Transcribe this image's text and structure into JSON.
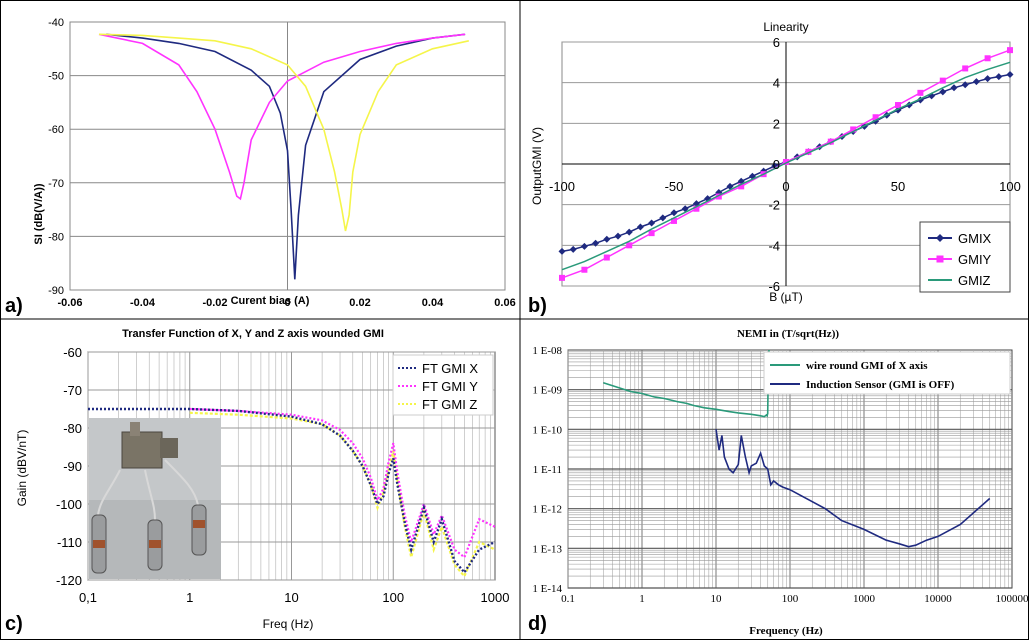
{
  "colors": {
    "navy": "#1f2a80",
    "magenta": "#ff33ff",
    "yellow": "#f5f54a",
    "teal": "#2a9a7a",
    "grid": "#aaaaaa",
    "photo_bg": "#c4c7c9"
  },
  "panels": {
    "a": {
      "label": "a)"
    },
    "b": {
      "label": "b)"
    },
    "c": {
      "label": "c)"
    },
    "d": {
      "label": "d)"
    }
  },
  "chart_data": [
    {
      "id": "a",
      "type": "line",
      "title": "",
      "xlabel": "Curent bias (A)",
      "ylabel": "SI (dB(V/A))",
      "xlim": [
        -0.06,
        0.06
      ],
      "ylim": [
        -90,
        -40
      ],
      "x_ticks": [
        "-0.06",
        "-0.04",
        "-0.02",
        "0",
        "0.02",
        "0.04",
        "0.06"
      ],
      "y_ticks": [
        "-40",
        "-50",
        "-60",
        "-70",
        "-80",
        "-90"
      ],
      "grid": "horizontal",
      "legend": "none",
      "series": [
        {
          "color": "navy",
          "x": [
            -0.05,
            -0.04,
            -0.03,
            -0.02,
            -0.01,
            -0.005,
            -0.002,
            0.0,
            0.001,
            0.002,
            0.003,
            0.005,
            0.01,
            0.02,
            0.03,
            0.04,
            0.049
          ],
          "y": [
            -42.3,
            -43,
            -44,
            -45.5,
            -49,
            -52,
            -57,
            -64,
            -75,
            -88,
            -76,
            -63,
            -53,
            -47,
            -44.5,
            -43,
            -42.3
          ]
        },
        {
          "color": "magenta",
          "x": [
            -0.052,
            -0.04,
            -0.03,
            -0.025,
            -0.02,
            -0.016,
            -0.014,
            -0.013,
            -0.012,
            -0.01,
            -0.005,
            0.0,
            0.01,
            0.02,
            0.03,
            0.04,
            0.049
          ],
          "y": [
            -42.3,
            -44,
            -48,
            -53,
            -60,
            -68,
            -72.5,
            -73,
            -70,
            -62,
            -55,
            -51,
            -47.5,
            -45.5,
            -44,
            -43,
            -42.3
          ]
        },
        {
          "color": "yellow",
          "x": [
            -0.052,
            -0.04,
            -0.03,
            -0.02,
            -0.01,
            0.0,
            0.005,
            0.01,
            0.013,
            0.015,
            0.016,
            0.017,
            0.018,
            0.02,
            0.025,
            0.03,
            0.04,
            0.05
          ],
          "y": [
            -42.3,
            -42.5,
            -43,
            -43.5,
            -45,
            -48,
            -52,
            -60,
            -68,
            -75,
            -79,
            -76,
            -68,
            -61,
            -53,
            -48,
            -45,
            -43.5
          ]
        }
      ]
    },
    {
      "id": "b",
      "type": "line",
      "title": "Linearity",
      "xlabel": "B (µT)",
      "ylabel": "OutputGMI (V)",
      "xlim": [
        -100,
        100
      ],
      "ylim": [
        -6,
        6
      ],
      "x_ticks": [
        "-100",
        "-50",
        "0",
        "50",
        "100"
      ],
      "y_ticks": [
        "6",
        "4",
        "2",
        "0",
        "-2",
        "-4",
        "-6"
      ],
      "grid": "horizontal",
      "legend": "bottom-right",
      "series": [
        {
          "name": "GMIX",
          "color": "navy",
          "marker": "diamond",
          "x": [
            -100,
            -95,
            -90,
            -85,
            -80,
            -75,
            -70,
            -65,
            -60,
            -55,
            -50,
            -45,
            -40,
            -35,
            -30,
            -25,
            -20,
            -15,
            -10,
            -5,
            0,
            5,
            10,
            15,
            20,
            25,
            30,
            35,
            40,
            45,
            50,
            55,
            60,
            65,
            70,
            75,
            80,
            85,
            90,
            95,
            100
          ],
          "y": [
            -4.3,
            -4.2,
            -4.05,
            -3.9,
            -3.7,
            -3.55,
            -3.35,
            -3.1,
            -2.9,
            -2.65,
            -2.4,
            -2.2,
            -1.95,
            -1.7,
            -1.4,
            -1.1,
            -0.85,
            -0.6,
            -0.35,
            -0.1,
            0.1,
            0.35,
            0.6,
            0.85,
            1.1,
            1.35,
            1.6,
            1.85,
            2.1,
            2.4,
            2.65,
            2.9,
            3.15,
            3.35,
            3.55,
            3.75,
            3.9,
            4.05,
            4.2,
            4.3,
            4.4
          ]
        },
        {
          "name": "GMIY",
          "color": "magenta",
          "marker": "square",
          "x": [
            -100,
            -90,
            -80,
            -70,
            -60,
            -50,
            -40,
            -30,
            -20,
            -10,
            0,
            10,
            20,
            30,
            40,
            50,
            60,
            70,
            80,
            90,
            100
          ],
          "y": [
            -5.6,
            -5.2,
            -4.6,
            -4.0,
            -3.4,
            -2.8,
            -2.2,
            -1.6,
            -1.1,
            -0.5,
            0.1,
            0.6,
            1.1,
            1.7,
            2.3,
            2.9,
            3.5,
            4.1,
            4.7,
            5.2,
            5.6
          ]
        },
        {
          "name": "GMIZ",
          "color": "teal",
          "marker": "none",
          "x": [
            -100,
            -90,
            -80,
            -70,
            -60,
            -50,
            -40,
            -30,
            -20,
            -10,
            0,
            10,
            20,
            30,
            40,
            50,
            60,
            70,
            80,
            90,
            100
          ],
          "y": [
            -5.2,
            -4.8,
            -4.3,
            -3.8,
            -3.2,
            -2.65,
            -2.1,
            -1.55,
            -1.0,
            -0.5,
            0.05,
            0.55,
            1.05,
            1.6,
            2.15,
            2.7,
            3.2,
            3.75,
            4.25,
            4.65,
            5.0
          ]
        }
      ]
    },
    {
      "id": "c",
      "type": "line",
      "title": "Transfer Function of X, Y and Z axis wounded GMI",
      "xlabel": "Freq (Hz)",
      "ylabel": "Gain (dBV/nT)",
      "xscale": "log",
      "xlim": [
        0.1,
        1000
      ],
      "ylim": [
        -120,
        -60
      ],
      "x_ticks": [
        "0,1",
        "1",
        "10",
        "100",
        "1000"
      ],
      "y_ticks": [
        "-60",
        "-70",
        "-80",
        "-90",
        "-100",
        "-110",
        "-120"
      ],
      "grid": "both",
      "legend": "top-right",
      "series": [
        {
          "name": "FT GMI X",
          "color": "navy",
          "style": "dotted",
          "x": [
            0.1,
            0.5,
            1,
            3,
            10,
            20,
            30,
            40,
            50,
            60,
            70,
            80,
            90,
            100,
            110,
            130,
            150,
            200,
            250,
            300,
            400,
            500,
            700,
            1000
          ],
          "y": [
            -75,
            -75,
            -75,
            -75.5,
            -77,
            -79,
            -82,
            -86,
            -90,
            -95,
            -100,
            -98,
            -92,
            -88,
            -95,
            -105,
            -112,
            -101,
            -110,
            -104,
            -115,
            -118,
            -112,
            -110
          ]
        },
        {
          "name": "FT GMI Y",
          "color": "magenta",
          "style": "dotted",
          "x": [
            1,
            3,
            10,
            20,
            30,
            40,
            50,
            60,
            70,
            80,
            90,
            100,
            110,
            130,
            150,
            200,
            250,
            300,
            400,
            500,
            700,
            1000
          ],
          "y": [
            -75,
            -75.5,
            -76.5,
            -78,
            -80.5,
            -84,
            -88,
            -93,
            -99,
            -96,
            -89,
            -84,
            -92,
            -103,
            -110,
            -100,
            -108,
            -103,
            -112,
            -114,
            -104,
            -106
          ]
        },
        {
          "name": "FT GMI Z",
          "color": "yellow",
          "style": "dotted",
          "x": [
            1,
            3,
            10,
            20,
            30,
            40,
            50,
            60,
            70,
            80,
            90,
            100,
            110,
            130,
            150,
            200,
            250,
            300,
            400,
            500,
            700,
            1000
          ],
          "y": [
            -76,
            -76.5,
            -77.5,
            -79,
            -82,
            -86,
            -90,
            -95,
            -101,
            -97,
            -91,
            -86,
            -94,
            -106,
            -114,
            -102,
            -112,
            -106,
            -116,
            -119,
            -110,
            -112
          ]
        }
      ]
    },
    {
      "id": "d",
      "type": "line",
      "title": "NEMI in (T/sqrt(Hz))",
      "xlabel": "Frequency (Hz)",
      "ylabel": "",
      "xscale": "log",
      "yscale": "log",
      "xlim": [
        0.1,
        100000
      ],
      "ylim": [
        1e-14,
        1e-08
      ],
      "x_ticks": [
        "0.1",
        "1",
        "10",
        "100",
        "1000",
        "10000",
        "100000"
      ],
      "y_ticks": [
        "1 E-08",
        "1 E-09",
        "1 E-10",
        "1 E-11",
        "1 E-12",
        "1 E-13",
        "1 E-14"
      ],
      "grid": "both",
      "legend": "top-right",
      "series": [
        {
          "name": "wire round  GMI of X axis",
          "color": "teal",
          "x": [
            0.3,
            0.5,
            0.7,
            1,
            1.5,
            2,
            3,
            4,
            5,
            7,
            10,
            15,
            20,
            30,
            40,
            45,
            48,
            49,
            50,
            51,
            52
          ],
          "y": [
            1.5e-09,
            1.1e-09,
            9e-10,
            8e-10,
            6.5e-10,
            6e-10,
            5e-10,
            4.5e-10,
            4e-10,
            3.5e-10,
            3.2e-10,
            2.8e-10,
            2.6e-10,
            2.4e-10,
            2.2e-10,
            2.1e-10,
            2.3e-10,
            2.2e-10,
            2.5e-10,
            5e-09,
            1e-08
          ]
        },
        {
          "name": "Induction Sensor (GMI is OFF)",
          "color": "navy",
          "x": [
            10,
            11,
            12,
            13,
            15,
            17,
            20,
            22,
            25,
            28,
            30,
            35,
            40,
            45,
            50,
            55,
            60,
            70,
            80,
            100,
            150,
            200,
            300,
            500,
            1000,
            2000,
            3000,
            4000,
            5000,
            7000,
            10000,
            20000,
            50000
          ],
          "y": [
            1e-10,
            3e-11,
            7e-11,
            2e-11,
            1e-11,
            8e-12,
            1.3e-11,
            7e-11,
            2e-11,
            8e-12,
            1.2e-11,
            1.4e-11,
            2.5e-11,
            1.2e-11,
            1e-11,
            4e-12,
            5e-12,
            4e-12,
            3.5e-12,
            3e-12,
            2e-12,
            1.5e-12,
            1e-12,
            5e-13,
            3e-13,
            1.6e-13,
            1.3e-13,
            1.1e-13,
            1.2e-13,
            1.6e-13,
            2e-13,
            4e-13,
            1.8e-12
          ]
        }
      ]
    }
  ]
}
